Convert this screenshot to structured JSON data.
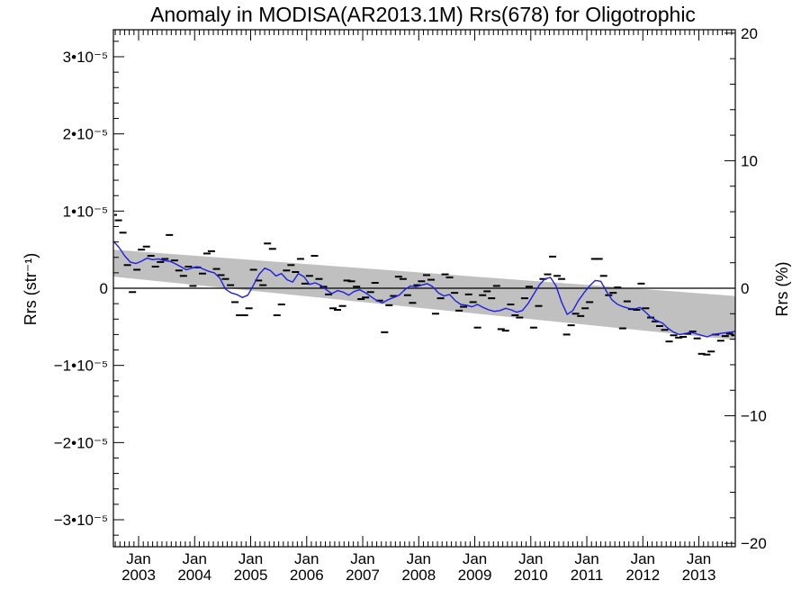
{
  "chart_data": {
    "type": "line",
    "title": "Anomaly in MODISA(AR2013.1M) Rrs(678) for Oligotrophic",
    "ylabel_left": "Rrs (str⁻¹)",
    "ylabel_right": "Rrs (%)",
    "ylim_left": [
      -3.35e-05,
      3.35e-05
    ],
    "ylim_right": [
      -20.27,
      20.27
    ],
    "left_ticks": [
      {
        "value": 3e-05,
        "label": "3•10⁻⁵"
      },
      {
        "value": 2e-05,
        "label": "2•10⁻⁵"
      },
      {
        "value": 1e-05,
        "label": "1•10⁻⁵"
      },
      {
        "value": 0,
        "label": "0"
      },
      {
        "value": -1e-05,
        "label": "−1•10⁻⁵"
      },
      {
        "value": -2e-05,
        "label": "−2•10⁻⁵"
      },
      {
        "value": -3e-05,
        "label": "−3•10⁻⁵"
      }
    ],
    "right_ticks": [
      {
        "value": 20,
        "label": "20"
      },
      {
        "value": 10,
        "label": "10"
      },
      {
        "value": 0,
        "label": "0"
      },
      {
        "value": -10,
        "label": "−10"
      },
      {
        "value": -20,
        "label": "−20"
      }
    ],
    "xlim": [
      2002.55,
      2013.65
    ],
    "x_ticks": [
      {
        "value": 2003.0,
        "month": "Jan",
        "year": "2003"
      },
      {
        "value": 2004.0,
        "month": "Jan",
        "year": "2004"
      },
      {
        "value": 2005.0,
        "month": "Jan",
        "year": "2005"
      },
      {
        "value": 2006.0,
        "month": "Jan",
        "year": "2006"
      },
      {
        "value": 2007.0,
        "month": "Jan",
        "year": "2007"
      },
      {
        "value": 2008.0,
        "month": "Jan",
        "year": "2008"
      },
      {
        "value": 2009.0,
        "month": "Jan",
        "year": "2009"
      },
      {
        "value": 2010.0,
        "month": "Jan",
        "year": "2010"
      },
      {
        "value": 2011.0,
        "month": "Jan",
        "year": "2011"
      },
      {
        "value": 2012.0,
        "month": "Jan",
        "year": "2012"
      },
      {
        "value": 2013.0,
        "month": "Jan",
        "year": "2013"
      }
    ],
    "trend_band": {
      "x": [
        2002.55,
        2013.65
      ],
      "upper": [
        5e-06,
        -1e-06
      ],
      "lower": [
        1.5e-06,
        -6.7e-06
      ]
    },
    "zero_line": 0,
    "monthly_anomalies": {
      "name": "",
      "x": [
        2002.55,
        2002.64,
        2002.72,
        2002.8,
        2002.89,
        2002.97,
        2003.05,
        2003.14,
        2003.22,
        2003.3,
        2003.39,
        2003.47,
        2003.55,
        2003.64,
        2003.72,
        2003.8,
        2003.89,
        2003.97,
        2004.05,
        2004.14,
        2004.22,
        2004.3,
        2004.39,
        2004.47,
        2004.55,
        2004.64,
        2004.72,
        2004.8,
        2004.89,
        2004.97,
        2005.05,
        2005.14,
        2005.22,
        2005.3,
        2005.39,
        2005.47,
        2005.55,
        2005.64,
        2005.72,
        2005.8,
        2005.89,
        2005.97,
        2006.05,
        2006.14,
        2006.22,
        2006.3,
        2006.39,
        2006.47,
        2006.55,
        2006.64,
        2006.72,
        2006.8,
        2006.89,
        2006.97,
        2007.05,
        2007.14,
        2007.22,
        2007.3,
        2007.39,
        2007.47,
        2007.55,
        2007.64,
        2007.72,
        2007.8,
        2007.89,
        2007.97,
        2008.05,
        2008.14,
        2008.22,
        2008.3,
        2008.39,
        2008.47,
        2008.55,
        2008.64,
        2008.72,
        2008.8,
        2008.89,
        2008.97,
        2009.05,
        2009.14,
        2009.22,
        2009.3,
        2009.39,
        2009.47,
        2009.55,
        2009.64,
        2009.72,
        2009.8,
        2009.89,
        2009.97,
        2010.05,
        2010.14,
        2010.22,
        2010.3,
        2010.39,
        2010.47,
        2010.55,
        2010.64,
        2010.72,
        2010.8,
        2010.89,
        2010.97,
        2011.05,
        2011.14,
        2011.22,
        2011.3,
        2011.39,
        2011.47,
        2011.55,
        2011.64,
        2011.72,
        2011.8,
        2011.89,
        2011.97,
        2012.05,
        2012.14,
        2012.22,
        2012.3,
        2012.39,
        2012.47,
        2012.55,
        2012.64,
        2012.72,
        2012.8,
        2012.89,
        2012.97,
        2013.05,
        2013.14,
        2013.22,
        2013.3,
        2013.39,
        2013.47,
        2013.55,
        2013.64
      ],
      "y": [
        9.5e-06,
        8.8e-06,
        7.2e-06,
        3e-06,
        -5e-07,
        2.4e-06,
        5e-06,
        5.4e-06,
        4.2e-06,
        2.8e-06,
        3.4e-06,
        3.8e-06,
        6.9e-06,
        3.6e-06,
        2.3e-06,
        1.6e-06,
        2.8e-06,
        3e-07,
        2.7e-06,
        1.9e-06,
        4.5e-06,
        4.8e-06,
        2.5e-06,
        1.7e-06,
        1.2e-06,
        4e-07,
        -1.8e-06,
        -3.5e-06,
        -3.5e-06,
        -2.6e-06,
        2.4e-06,
        1e-06,
        4e-07,
        5.8e-06,
        5.1e-06,
        -3.5e-06,
        -2.1e-06,
        2.3e-06,
        3e-06,
        2.1e-06,
        3.8e-06,
        6e-07,
        1.6e-06,
        4.2e-06,
        1.2e-06,
        2e-07,
        -8e-07,
        -2.6e-06,
        -2.8e-06,
        -2.3e-06,
        1e-06,
        9e-07,
        2e-07,
        -1.4e-06,
        -1.2e-06,
        -5e-07,
        7e-07,
        -1.6e-06,
        -5.7e-06,
        -2.2e-06,
        -1e-06,
        1.5e-06,
        1.2e-06,
        -9e-07,
        -1.9e-06,
        4e-07,
        9e-07,
        1.7e-06,
        1.1e-06,
        -3.3e-06,
        -1.3e-06,
        1.8e-06,
        1.4e-06,
        -6e-07,
        -2.9e-06,
        -2.4e-06,
        -8e-07,
        -1.8e-06,
        -5.1e-06,
        -9e-07,
        -4e-07,
        -1.3e-06,
        3e-07,
        -5.3e-06,
        -5.5e-06,
        -2.1e-06,
        -3.5e-06,
        -3.8e-06,
        -1.3e-06,
        2e-07,
        -5.1e-06,
        -2.3e-06,
        1.2e-06,
        1.8e-06,
        4.1e-06,
        1.6e-06,
        1.2e-06,
        -6e-06,
        -4.8e-06,
        -3.3e-06,
        -3.6e-06,
        -2.6e-06,
        -1.8e-06,
        3.8e-06,
        3.8e-06,
        1.6e-06,
        -9e-07,
        -6e-07,
        1e-07,
        -5.2e-06,
        -1.7e-06,
        -2.7e-06,
        -2.8e-06,
        6e-07,
        -2.6e-06,
        -3.8e-06,
        -4.3e-06,
        -4.9e-06,
        -5.4e-06,
        -6.9e-06,
        -6.1e-06,
        -6.4e-06,
        -6.3e-06,
        -5.9e-06,
        -5.6e-06,
        -6.5e-06,
        -8.5e-06,
        -8.6e-06,
        -8.2e-06,
        -6e-06,
        -6.8e-06,
        -6.2e-06,
        -5.9e-06,
        -6.1e-06
      ]
    },
    "smoothed_series": {
      "name": "",
      "color": "#1f1fe0",
      "x": [
        2002.55,
        2002.65,
        2002.75,
        2002.85,
        2002.95,
        2003.05,
        2003.15,
        2003.25,
        2003.35,
        2003.45,
        2003.55,
        2003.65,
        2003.75,
        2003.85,
        2003.95,
        2004.05,
        2004.15,
        2004.25,
        2004.35,
        2004.45,
        2004.55,
        2004.65,
        2004.75,
        2004.85,
        2004.95,
        2005.05,
        2005.15,
        2005.25,
        2005.35,
        2005.45,
        2005.55,
        2005.65,
        2005.75,
        2005.85,
        2005.95,
        2006.05,
        2006.15,
        2006.25,
        2006.35,
        2006.45,
        2006.55,
        2006.65,
        2006.75,
        2006.85,
        2006.95,
        2007.05,
        2007.15,
        2007.25,
        2007.35,
        2007.45,
        2007.55,
        2007.65,
        2007.75,
        2007.85,
        2007.95,
        2008.05,
        2008.15,
        2008.25,
        2008.35,
        2008.45,
        2008.55,
        2008.65,
        2008.75,
        2008.85,
        2008.95,
        2009.05,
        2009.15,
        2009.25,
        2009.35,
        2009.45,
        2009.55,
        2009.65,
        2009.75,
        2009.85,
        2009.95,
        2010.05,
        2010.15,
        2010.25,
        2010.35,
        2010.45,
        2010.55,
        2010.65,
        2010.75,
        2010.85,
        2010.95,
        2011.05,
        2011.15,
        2011.25,
        2011.35,
        2011.45,
        2011.55,
        2011.65,
        2011.75,
        2011.85,
        2011.95,
        2012.05,
        2012.15,
        2012.25,
        2012.35,
        2012.45,
        2012.55,
        2012.65,
        2012.75,
        2012.85,
        2012.95,
        2013.05,
        2013.15,
        2013.25,
        2013.35,
        2013.45,
        2013.55,
        2013.65
      ],
      "y": [
        6.1e-06,
        5.3e-06,
        4.2e-06,
        3.4e-06,
        3.2e-06,
        3.5e-06,
        3.9e-06,
        3.7e-06,
        3.8e-06,
        3.6e-06,
        3.5e-06,
        3.2e-06,
        2.8e-06,
        2.4e-06,
        2.6e-06,
        2.8e-06,
        2.5e-06,
        2.2e-06,
        2e-06,
        1.3e-06,
        -1e-07,
        -6e-07,
        -8e-07,
        -1.2e-06,
        -9e-07,
        4e-07,
        1.8e-06,
        2.6e-06,
        2.3e-06,
        1.6e-06,
        1.9e-06,
        1.1e-06,
        8e-07,
        1.9e-06,
        1.5e-06,
        5e-07,
        7e-07,
        4e-07,
        -2e-07,
        -7e-07,
        -3e-07,
        -5e-07,
        -9e-07,
        -4e-07,
        -2e-07,
        -6e-07,
        -1.1e-06,
        -1.6e-06,
        -1.9e-06,
        -1.5e-06,
        -1.2e-06,
        -9e-07,
        -2e-07,
        3e-07,
        2e-07,
        4e-07,
        6e-07,
        2e-07,
        -6e-07,
        -1e-06,
        -8e-07,
        -1.6e-06,
        -2.1e-06,
        -2.2e-06,
        -2.4e-06,
        -2.1e-06,
        -2.5e-06,
        -2.8e-06,
        -3e-06,
        -2.9e-06,
        -2.6e-06,
        -2.8e-06,
        -3.1e-06,
        -2.9e-06,
        -2e-06,
        -8e-07,
        4e-07,
        1.2e-06,
        1.4e-06,
        3e-07,
        -1.8e-06,
        -3.4e-06,
        -2.9e-06,
        -1.6e-06,
        -6e-07,
        3e-07,
        1e-06,
        9e-07,
        -4e-07,
        -1.5e-06,
        -2.1e-06,
        -2.4e-06,
        -2.6e-06,
        -2.7e-06,
        -2.5e-06,
        -3.1e-06,
        -3.8e-06,
        -4.2e-06,
        -4.5e-06,
        -5.2e-06,
        -5.7e-06,
        -6e-06,
        -5.9e-06,
        -5.7e-06,
        -5.9e-06,
        -6.1e-06,
        -6.3e-06,
        -6e-06,
        -5.9e-06,
        -5.8e-06,
        -5.7e-06,
        -5.6e-06
      ]
    },
    "grid": false,
    "legend": "none"
  }
}
